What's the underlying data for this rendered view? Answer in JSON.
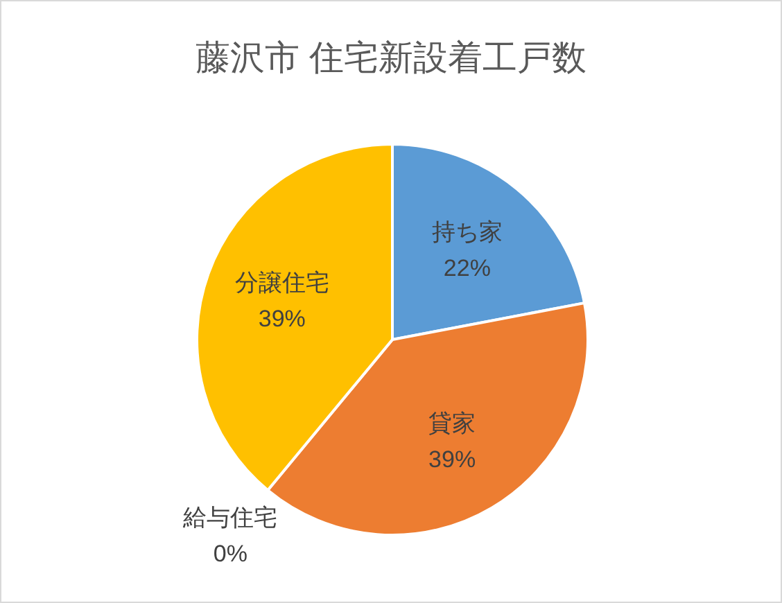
{
  "chart_data": {
    "type": "pie",
    "title": "藤沢市 住宅新設着工戸数",
    "categories": [
      "持ち家",
      "貸家",
      "給与住宅",
      "分譲住宅"
    ],
    "values": [
      22,
      39,
      0,
      39
    ],
    "value_labels": [
      "22%",
      "39%",
      "0%",
      "39%"
    ],
    "colors": [
      "#5b9bd5",
      "#ed7d31",
      null,
      "#ffc000"
    ]
  }
}
